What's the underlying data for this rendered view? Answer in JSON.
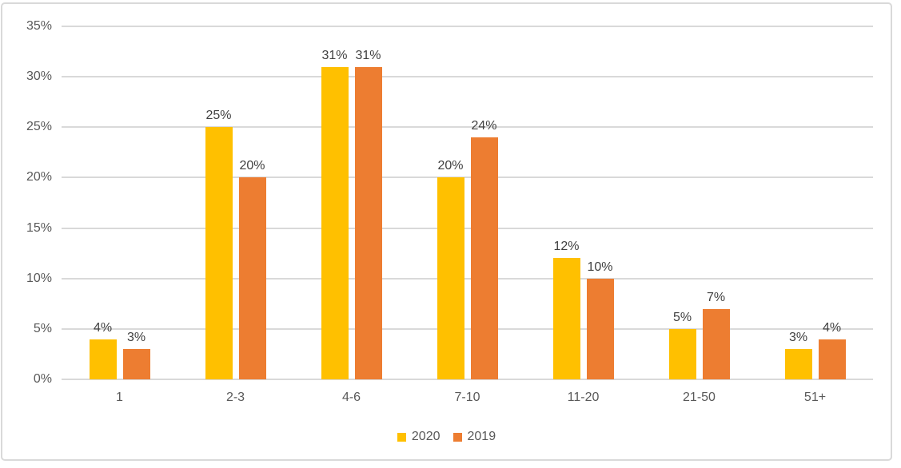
{
  "chart_data": {
    "type": "bar",
    "categories": [
      "1",
      "2-3",
      "4-6",
      "7-10",
      "11-20",
      "21-50",
      "51+"
    ],
    "series": [
      {
        "name": "2020",
        "color": "#FFC000",
        "values": [
          4,
          25,
          31,
          20,
          12,
          5,
          3
        ]
      },
      {
        "name": "2019",
        "color": "#ED7D31",
        "values": [
          3,
          20,
          31,
          24,
          10,
          7,
          4
        ]
      }
    ],
    "data_labels": [
      "4%",
      "25%",
      "31%",
      "20%",
      "12%",
      "5%",
      "3%",
      "3%",
      "20%",
      "31%",
      "24%",
      "10%",
      "7%",
      "4%"
    ],
    "value_suffix": "%",
    "title": "",
    "xlabel": "",
    "ylabel": "",
    "ylim": [
      0,
      35
    ],
    "yticks": [
      0,
      5,
      10,
      15,
      20,
      25,
      30,
      35
    ],
    "ytick_labels": [
      "0%",
      "5%",
      "10%",
      "15%",
      "20%",
      "25%",
      "30%",
      "35%"
    ],
    "grid": true,
    "legend_position": "bottom-center",
    "legend_labels": [
      "2020",
      "2019"
    ],
    "colors": {
      "gridline": "#D9D9D9",
      "axis_text": "#595959",
      "data_label_text": "#404040",
      "frame_border": "#D9D9D9",
      "background": "#FFFFFF"
    }
  }
}
